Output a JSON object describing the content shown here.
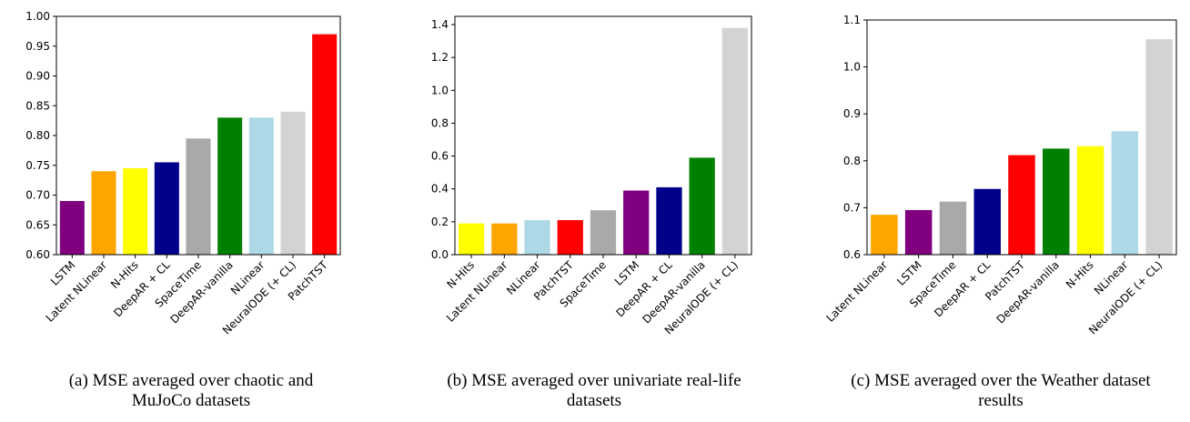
{
  "chart_data": [
    {
      "type": "bar",
      "categories": [
        "LSTM",
        "Latent NLinear",
        "N-Hits",
        "DeepAR + CL",
        "SpaceTime",
        "DeepAR-vanilla",
        "NLinear",
        "NeuralODE (+ CL)",
        "PatchTST"
      ],
      "values": [
        0.69,
        0.74,
        0.745,
        0.755,
        0.795,
        0.83,
        0.83,
        0.84,
        0.97
      ],
      "colors": [
        "#800080",
        "#FFA500",
        "#FFFF00",
        "#00008B",
        "#A9A9A9",
        "#008000",
        "#ADD8E6",
        "#D3D3D3",
        "#FF0000"
      ],
      "ylim": [
        0.6,
        1.0
      ],
      "yticks": [
        "0.60",
        "0.65",
        "0.70",
        "0.75",
        "0.80",
        "0.85",
        "0.90",
        "0.95",
        "1.00"
      ],
      "caption": "(a) MSE averaged over chaotic and MuJoCo datasets",
      "caption_lines": [
        "(a) MSE averaged over chaotic and",
        "MuJoCo datasets"
      ]
    },
    {
      "type": "bar",
      "categories": [
        "N-Hits",
        "Latent NLinear",
        "NLinear",
        "PatchTST",
        "SpaceTime",
        "LSTM",
        "DeepAR + CL",
        "DeepAR-vanilla",
        "NeuralODE (+ CL)"
      ],
      "values": [
        0.19,
        0.19,
        0.21,
        0.21,
        0.27,
        0.39,
        0.41,
        0.59,
        1.38
      ],
      "colors": [
        "#FFFF00",
        "#FFA500",
        "#ADD8E6",
        "#FF0000",
        "#A9A9A9",
        "#800080",
        "#00008B",
        "#008000",
        "#D3D3D3"
      ],
      "ylim": [
        0.0,
        1.45
      ],
      "yticks": [
        "0.0",
        "0.2",
        "0.4",
        "0.6",
        "0.8",
        "1.0",
        "1.2",
        "1.4"
      ],
      "caption": "(b) MSE averaged over univariate real-life datasets",
      "caption_lines": [
        "(b) MSE averaged over univariate real-life",
        "datasets"
      ]
    },
    {
      "type": "bar",
      "categories": [
        "Latent NLinear",
        "LSTM",
        "SpaceTime",
        "DeepAR + CL",
        "PatchTST",
        "DeepAR-vanilla",
        "N-Hits",
        "NLinear",
        "NeuralODE (+ CL)"
      ],
      "values": [
        0.685,
        0.695,
        0.713,
        0.74,
        0.812,
        0.826,
        0.831,
        0.863,
        1.059
      ],
      "colors": [
        "#FFA500",
        "#800080",
        "#A9A9A9",
        "#00008B",
        "#FF0000",
        "#008000",
        "#FFFF00",
        "#ADD8E6",
        "#D3D3D3"
      ],
      "ylim": [
        0.6,
        1.1
      ],
      "yticks": [
        "0.6",
        "0.7",
        "0.8",
        "0.9",
        "1.0",
        "1.1"
      ],
      "caption": "(c) MSE averaged over the Weather dataset results",
      "caption_lines": [
        "(c) MSE averaged over the Weather dataset",
        "results"
      ]
    }
  ]
}
